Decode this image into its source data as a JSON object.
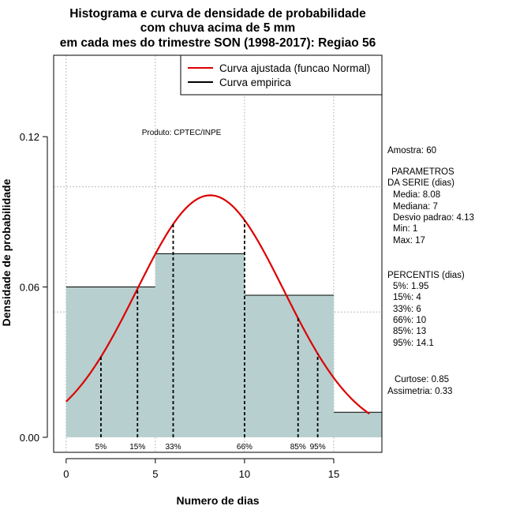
{
  "chart_data": {
    "type": "histogram",
    "title_lines": [
      "Histograma e curva de densidade de probabilidade",
      "com chuva acima de 5 mm",
      "em cada mes do trimestre SON (1998-2017): Regiao 56"
    ],
    "xlabel": "Numero de dias",
    "ylabel": "Densidade de probabilidade",
    "xlim": [
      -0.7,
      17.7
    ],
    "ylim": [
      -0.006,
      0.1525
    ],
    "x_ticks": [
      0,
      5,
      10,
      15
    ],
    "y_ticks": [
      0.0,
      0.06,
      0.12
    ],
    "y_tick_labels": [
      "0.00",
      "0.06",
      "0.12"
    ],
    "grid_x": [
      0,
      5,
      10,
      15
    ],
    "grid_y": [
      0.05,
      0.1
    ],
    "bins": [
      {
        "x0": 0,
        "x1": 5,
        "density": 0.06
      },
      {
        "x0": 5,
        "x1": 10,
        "density": 0.0733
      },
      {
        "x0": 10,
        "x1": 15,
        "density": 0.0567
      },
      {
        "x0": 15,
        "x1": 17.7,
        "density": 0.01
      }
    ],
    "normal_fit": {
      "mean": 8.08,
      "sd": 4.13,
      "x_from": 0,
      "x_to": 17
    },
    "percentiles": [
      {
        "label": "5%",
        "value": 1.95
      },
      {
        "label": "15%",
        "value": 4
      },
      {
        "label": "33%",
        "value": 6
      },
      {
        "label": "66%",
        "value": 10
      },
      {
        "label": "85%",
        "value": 13
      },
      {
        "label": "95%",
        "value": 14.1
      }
    ],
    "legend": [
      {
        "label": "Curva ajustada (funcao Normal)",
        "color": "#dd0000"
      },
      {
        "label": "Curva empirica",
        "color": "#000000"
      }
    ],
    "legend_position": "top-right",
    "bar_color": "#b7cfcf",
    "curve_color": "#dd0000",
    "annotation_product": "Produto: CPTEC/INPE",
    "side_panel": {
      "sample": "Amostra: 60",
      "params_title_1": "PARAMETROS",
      "params_title_2": "DA SERIE (dias)",
      "media": "Media: 8.08",
      "mediana": "Mediana: 7",
      "desvio": "Desvio padrao: 4.13",
      "min": "Min: 1",
      "max": "Max: 17",
      "percentis_title": "PERCENTIS (dias)",
      "p5": "5%: 1.95",
      "p15": "15%: 4",
      "p33": "33%: 6",
      "p66": "66%: 10",
      "p85": "85%: 13",
      "p95": "95%: 14.1",
      "curtose": "Curtose: 0.85",
      "assimetria": "Assimetria: 0.33"
    }
  }
}
